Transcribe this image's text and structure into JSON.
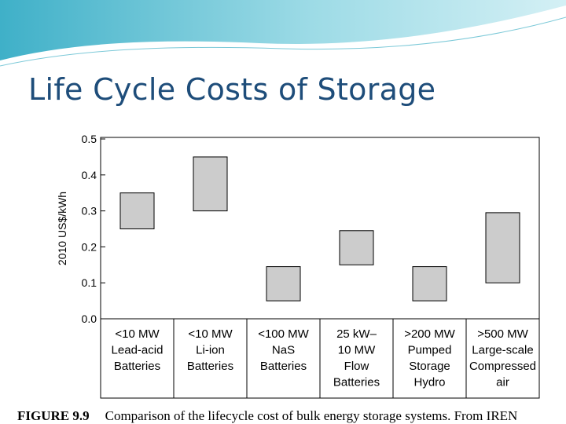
{
  "slide": {
    "title": "Life Cycle Costs of Storage"
  },
  "caption": {
    "figure_label": "FIGURE 9.9",
    "text": "Comparison of the lifecycle cost of bulk energy storage systems. From IREN"
  },
  "colors": {
    "title": "#1e4d7a",
    "bar_fill": "#cccccc",
    "bar_stroke": "#000000",
    "banner": "#5fc4d6"
  },
  "chart_data": {
    "type": "bar",
    "title": "",
    "xlabel": "",
    "ylabel": "2010 US$/kWh",
    "ylim": [
      0.0,
      0.5
    ],
    "yticks": [
      "0.0",
      "0.1",
      "0.2",
      "0.3",
      "0.4",
      "0.5"
    ],
    "grid": false,
    "categories": [
      [
        "<10 MW",
        "Lead-acid",
        "Batteries"
      ],
      [
        "<10 MW",
        "Li-ion",
        "Batteries"
      ],
      [
        "<100 MW",
        "NaS",
        "Batteries"
      ],
      [
        "25 kW–",
        "10 MW",
        "Flow",
        "Batteries"
      ],
      [
        ">200 MW",
        "Pumped",
        "Storage",
        "Hydro"
      ],
      [
        ">500 MW",
        "Large-scale",
        "Compressed",
        "air"
      ]
    ],
    "ranges": [
      {
        "low": 0.25,
        "high": 0.35
      },
      {
        "low": 0.3,
        "high": 0.45
      },
      {
        "low": 0.05,
        "high": 0.145
      },
      {
        "low": 0.15,
        "high": 0.245
      },
      {
        "low": 0.05,
        "high": 0.145
      },
      {
        "low": 0.1,
        "high": 0.295
      }
    ]
  }
}
